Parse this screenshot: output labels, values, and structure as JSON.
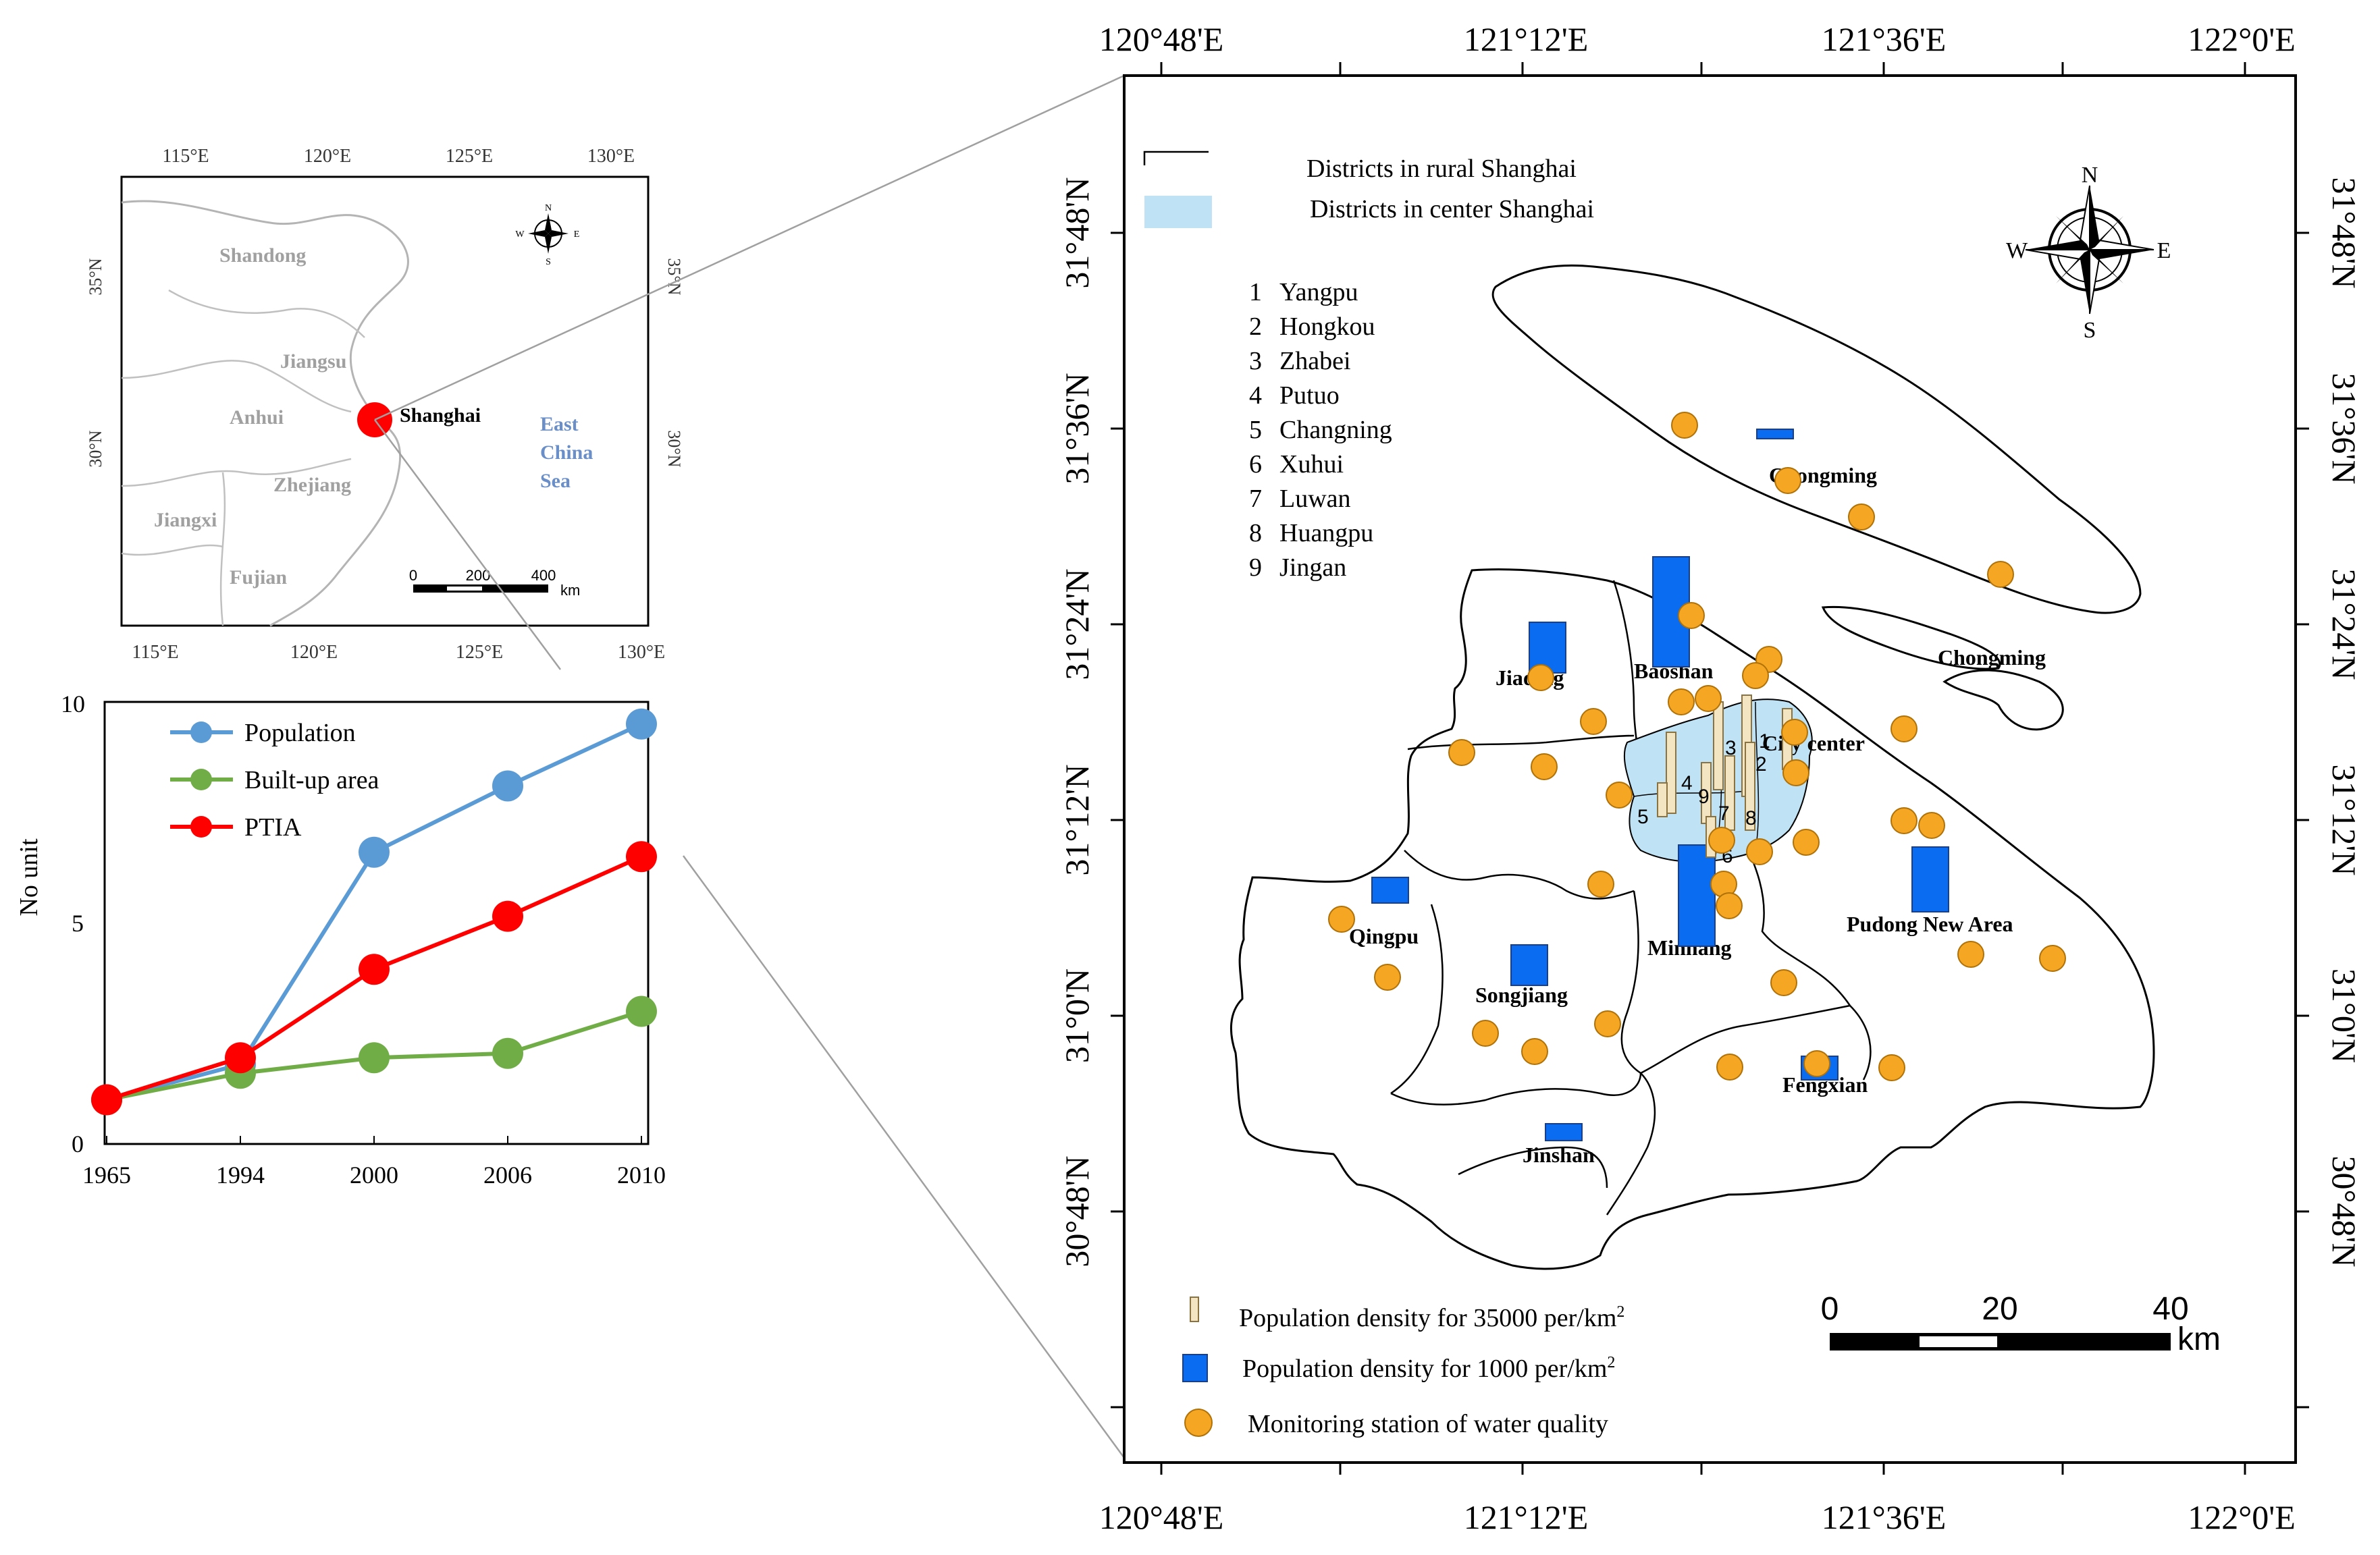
{
  "inset_map": {
    "lon_top": [
      "115°E",
      "120°E",
      "125°E",
      "130°E"
    ],
    "lon_bottom": [
      "115°E",
      "120°E",
      "125°E",
      "130°E"
    ],
    "lat_left": [
      "35°N",
      "30°N"
    ],
    "lat_right": [
      "35°N",
      "30°N"
    ],
    "provinces": [
      "Shandong",
      "Jiangsu",
      "Anhui",
      "Zhejiang",
      "Jiangxi",
      "Fujian"
    ],
    "city_label": "Shanghai",
    "sea_label": [
      "East",
      "China",
      "Sea"
    ],
    "scale": {
      "ticks": [
        "0",
        "200",
        "400"
      ],
      "unit": "km"
    },
    "compass": {
      "n": "N",
      "s": "S",
      "e": "E",
      "w": "W"
    },
    "colors": {
      "city": "#ff0000",
      "sea_text": "#6a8fc8",
      "province_text": "#a0a0a0",
      "boundary": "#b4b4b4"
    }
  },
  "chart_data": {
    "type": "line",
    "categories": [
      "1965",
      "1994",
      "2000",
      "2006",
      "2010"
    ],
    "series": [
      {
        "name": "Population",
        "color": "#5b9bd5",
        "values": [
          1,
          1.8,
          6.6,
          8.1,
          9.5
        ]
      },
      {
        "name": "Built-up area",
        "color": "#70ad47",
        "values": [
          1,
          1.6,
          1.95,
          2.05,
          3.0
        ]
      },
      {
        "name": "PTIA",
        "color": "#ff0000",
        "values": [
          1,
          1.95,
          3.95,
          5.15,
          6.5
        ]
      }
    ],
    "ylabel": "No unit",
    "xlabel": "",
    "ylim": [
      0,
      10
    ],
    "yticks": [
      "0",
      "5",
      "10"
    ],
    "legend": "top-left"
  },
  "main_map": {
    "lon_labels": [
      "120°48'E",
      "121°12'E",
      "121°36'E",
      "122°0'E"
    ],
    "lat_labels": [
      "31°48'N",
      "31°36'N",
      "31°24'N",
      "31°12'N",
      "31°0'N",
      "30°48'N"
    ],
    "legend_top": {
      "rural": "Districts in rural Shanghai",
      "center": "Districts in center Shanghai"
    },
    "numbered_list": [
      {
        "num": "1",
        "name": "Yangpu"
      },
      {
        "num": "2",
        "name": "Hongkou"
      },
      {
        "num": "3",
        "name": "Zhabei"
      },
      {
        "num": "4",
        "name": "Putuo"
      },
      {
        "num": "5",
        "name": "Changning"
      },
      {
        "num": "6",
        "name": "Xuhui"
      },
      {
        "num": "7",
        "name": "Luwan"
      },
      {
        "num": "8",
        "name": "Huangpu"
      },
      {
        "num": "9",
        "name": "Jingan"
      }
    ],
    "district_labels": [
      "Chongming",
      "Chongming",
      "Baoshan",
      "Jiading",
      "City center",
      "Qingpu",
      "Pudong New Area",
      "Minhang",
      "Songjiang",
      "Fengxian",
      "Jinshan"
    ],
    "center_numbers": [
      "1",
      "2",
      "3",
      "4",
      "5",
      "6",
      "7",
      "8",
      "9"
    ],
    "legend_bottom": {
      "pop_35000": "Population density for 35000 per/km",
      "pop_1000": "Population density for 1000 per/km",
      "sup": "2",
      "monitor": "Monitoring station of water quality"
    },
    "scale": {
      "ticks": [
        "0",
        "20",
        "40"
      ],
      "unit": "km"
    },
    "compass": {
      "n": "N",
      "s": "S",
      "e": "E",
      "w": "W"
    },
    "colors": {
      "center_fill": "#bfe3f5",
      "bar_blue": "#0a6cf0",
      "bar_beige": "#f3e5c2",
      "station": "#f5a623",
      "station_stroke": "#b07208"
    }
  }
}
